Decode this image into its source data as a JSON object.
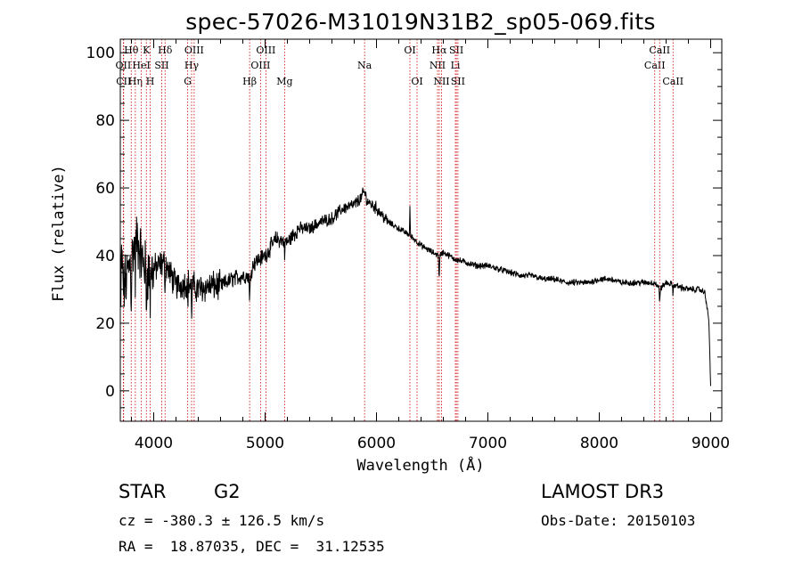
{
  "chart_data": {
    "type": "line",
    "title": "spec-57026-M31019N31B2_sp05-069.fits",
    "xlabel": "Wavelength (Å)",
    "ylabel": "Flux (relative)",
    "xlim": [
      3700,
      9100
    ],
    "ylim": [
      -9,
      104
    ],
    "xticks": [
      4000,
      5000,
      6000,
      7000,
      8000,
      9000
    ],
    "yticks": [
      0,
      20,
      40,
      60,
      80,
      100
    ],
    "spectrum_anchors": {
      "x": [
        3700,
        3710,
        3730,
        3760,
        3800,
        3850,
        3900,
        3950,
        4000,
        4100,
        4200,
        4300,
        4400,
        4500,
        4600,
        4700,
        4800,
        4860,
        4900,
        5000,
        5100,
        5200,
        5300,
        5400,
        5500,
        5600,
        5700,
        5800,
        5860,
        5890,
        5920,
        6000,
        6100,
        6200,
        6300,
        6400,
        6500,
        6563,
        6600,
        6700,
        6800,
        6900,
        7000,
        7100,
        7200,
        7300,
        7400,
        7500,
        7600,
        7700,
        7800,
        7900,
        8000,
        8100,
        8200,
        8300,
        8400,
        8500,
        8542,
        8600,
        8700,
        8800,
        8900,
        8950,
        8985,
        9000
      ],
      "y": [
        8,
        40,
        30,
        34,
        40,
        45,
        38,
        35,
        36,
        38,
        31,
        32,
        30,
        31,
        31,
        33,
        34,
        34,
        38,
        40,
        45,
        44,
        48,
        48,
        50,
        51,
        54,
        55,
        57,
        59,
        56,
        54,
        50,
        48,
        46,
        43,
        41,
        40,
        41,
        39,
        38,
        37,
        37,
        36,
        35,
        34,
        34,
        33,
        33,
        32,
        32,
        32,
        33,
        33,
        32,
        32,
        32,
        32,
        30,
        32,
        31,
        30,
        30,
        29,
        20,
        1
      ]
    },
    "spectral_lines": [
      {
        "label": "Hθ",
        "wavelength": 3798,
        "row": 0
      },
      {
        "label": "OII",
        "wavelength": 3727,
        "row": 1
      },
      {
        "label": "CII",
        "wavelength": 3730,
        "row": 2
      },
      {
        "label": "Hη",
        "wavelength": 3835,
        "row": 2
      },
      {
        "label": "HeI",
        "wavelength": 3889,
        "row": 1
      },
      {
        "label": "K",
        "wavelength": 3934,
        "row": 0
      },
      {
        "label": "H",
        "wavelength": 3968,
        "row": 2
      },
      {
        "label": "SII",
        "wavelength": 4072,
        "row": 1
      },
      {
        "label": "Hδ",
        "wavelength": 4102,
        "row": 0
      },
      {
        "label": "G",
        "wavelength": 4305,
        "row": 2
      },
      {
        "label": "Hγ",
        "wavelength": 4340,
        "row": 1
      },
      {
        "label": "OIII",
        "wavelength": 4363,
        "row": 0
      },
      {
        "label": "Hβ",
        "wavelength": 4861,
        "row": 2
      },
      {
        "label": "OIII",
        "wavelength": 4959,
        "row": 1
      },
      {
        "label": "OIII",
        "wavelength": 5007,
        "row": 0
      },
      {
        "label": "Mg",
        "wavelength": 5175,
        "row": 2
      },
      {
        "label": "Na",
        "wavelength": 5893,
        "row": 1
      },
      {
        "label": "OI",
        "wavelength": 6300,
        "row": 0
      },
      {
        "label": "OI",
        "wavelength": 6364,
        "row": 2
      },
      {
        "label": "NII",
        "wavelength": 6548,
        "row": 1
      },
      {
        "label": "Hα",
        "wavelength": 6563,
        "row": 0
      },
      {
        "label": "NII",
        "wavelength": 6584,
        "row": 2
      },
      {
        "label": "Li",
        "wavelength": 6708,
        "row": 1
      },
      {
        "label": "SII",
        "wavelength": 6717,
        "row": 0
      },
      {
        "label": "SII",
        "wavelength": 6731,
        "row": 2
      },
      {
        "label": "CaII",
        "wavelength": 8498,
        "row": 1
      },
      {
        "label": "CaII",
        "wavelength": 8542,
        "row": 0
      },
      {
        "label": "CaII",
        "wavelength": 8662,
        "row": 2
      }
    ]
  },
  "info": {
    "class": "STAR",
    "subclass": "G2",
    "survey": "LAMOST DR3",
    "cz": "cz = -380.3 ± 126.5 km/s",
    "obs_date": "Obs-Date: 20150103",
    "coords": "RA =  18.87035, DEC =  31.12535"
  },
  "colors": {
    "axis": "#000000",
    "spectrum": "#000000",
    "line_marker": "#cc0000"
  }
}
